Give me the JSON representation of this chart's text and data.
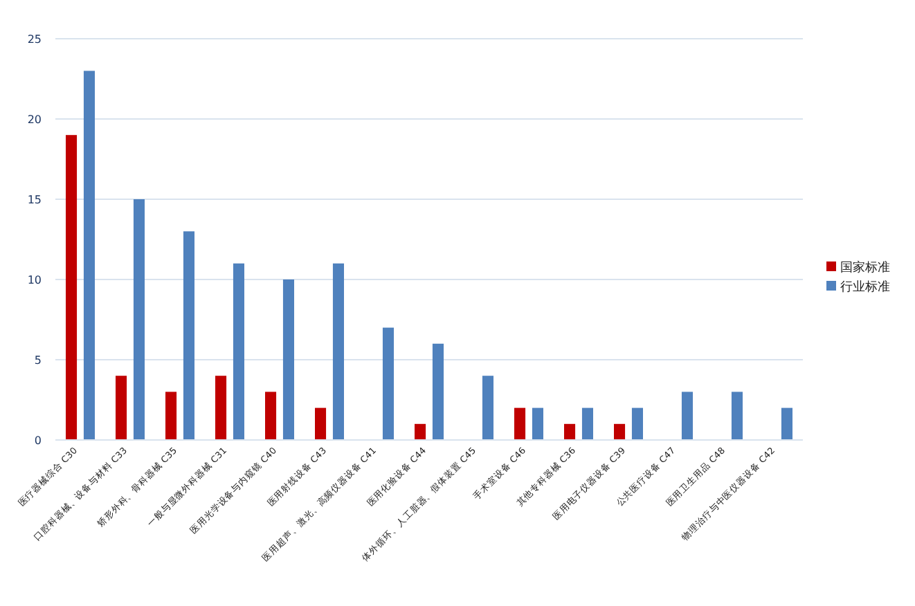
{
  "chart_data": {
    "type": "bar",
    "categories": [
      "医疗器械综合 C30",
      "口腔科器械、设备与材料 C33",
      "矫形外科、骨科器械 C35",
      "一般与显微外科器械 C31",
      "医用光学设备与内窥镜 C40",
      "医用射线设备 C43",
      "医用超声、激光、高频仪器设备 C41",
      "医用化验设备 C44",
      "体外循环、人工脏器、假体装置 C45",
      "手术室设备 C46",
      "其他专科器械 C36",
      "医用电子仪器设备 C39",
      "公共医疗设备 C47",
      "医用卫生用品 C48",
      "物理治疗与中医仪器设备 C42"
    ],
    "series": [
      {
        "name": "国家标准",
        "color": "#c00000",
        "values": [
          19,
          4,
          3,
          4,
          3,
          2,
          0,
          1,
          0,
          2,
          1,
          1,
          0,
          0,
          0
        ]
      },
      {
        "name": "行业标准",
        "color": "#4f81bd",
        "values": [
          23,
          15,
          13,
          11,
          10,
          11,
          7,
          6,
          4,
          2,
          2,
          2,
          3,
          3,
          2
        ]
      }
    ],
    "ylim": [
      0,
      25
    ],
    "yticks": [
      0,
      5,
      10,
      15,
      20,
      25
    ],
    "grid": "y",
    "legend": "right"
  }
}
